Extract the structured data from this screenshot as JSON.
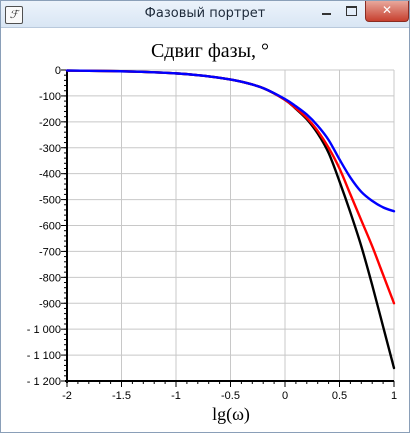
{
  "window": {
    "title": "Фазовый портрет",
    "app_icon": "ℱ",
    "icons": {
      "minimize": "minimize-icon",
      "maximize": "maximize-icon",
      "close": "close-icon"
    },
    "close_glyph": "✕"
  },
  "chart_data": {
    "type": "line",
    "title": "Сдвиг фазы, °",
    "xlabel": "lg(ω)",
    "ylabel": "",
    "xlim": [
      -2,
      1
    ],
    "ylim": [
      -1200,
      0
    ],
    "x_ticks": [
      -2,
      -1.5,
      -1,
      -0.5,
      0,
      0.5,
      1
    ],
    "x_tick_labels": [
      "-2",
      "-1.5",
      "-1",
      "-0.5",
      "0",
      "0.5",
      "1"
    ],
    "y_ticks": [
      0,
      -100,
      -200,
      -300,
      -400,
      -500,
      -600,
      -700,
      -800,
      -900,
      -1000,
      -1100,
      -1200
    ],
    "y_tick_labels": [
      "0",
      "-100",
      "-200",
      "-300",
      "-400",
      "-500",
      "-600",
      "-700",
      "-800",
      "-900",
      "- 1 000",
      "- 1 100",
      "- 1 200"
    ],
    "grid": true,
    "legend": "none",
    "series": [
      {
        "color": "#000000",
        "x": [
          -2,
          -1.8,
          -1.6,
          -1.4,
          -1.2,
          -1,
          -0.8,
          -0.6,
          -0.4,
          -0.2,
          0,
          0.1,
          0.2,
          0.3,
          0.4,
          0.5,
          0.6,
          0.7,
          0.8,
          0.9,
          1
        ],
        "y": [
          -2,
          -3,
          -4,
          -6,
          -9,
          -13,
          -20,
          -30,
          -45,
          -70,
          -115,
          -150,
          -190,
          -245,
          -320,
          -430,
          -550,
          -680,
          -830,
          -990,
          -1150
        ]
      },
      {
        "color": "#ff0000",
        "x": [
          -2,
          -1.8,
          -1.6,
          -1.4,
          -1.2,
          -1,
          -0.8,
          -0.6,
          -0.4,
          -0.2,
          0,
          0.1,
          0.2,
          0.3,
          0.4,
          0.5,
          0.6,
          0.7,
          0.8,
          0.9,
          1
        ],
        "y": [
          -2,
          -3,
          -4,
          -6,
          -9,
          -13,
          -20,
          -30,
          -45,
          -70,
          -115,
          -148,
          -185,
          -235,
          -300,
          -380,
          -480,
          -580,
          -680,
          -790,
          -900
        ]
      },
      {
        "color": "#0000ff",
        "x": [
          -2,
          -1.8,
          -1.6,
          -1.4,
          -1.2,
          -1,
          -0.8,
          -0.6,
          -0.4,
          -0.2,
          0,
          0.1,
          0.2,
          0.3,
          0.4,
          0.5,
          0.6,
          0.7,
          0.8,
          0.9,
          1
        ],
        "y": [
          -2,
          -3,
          -4,
          -6,
          -9,
          -13,
          -20,
          -30,
          -45,
          -70,
          -112,
          -140,
          -172,
          -215,
          -270,
          -345,
          -415,
          -470,
          -505,
          -530,
          -545
        ]
      }
    ]
  }
}
